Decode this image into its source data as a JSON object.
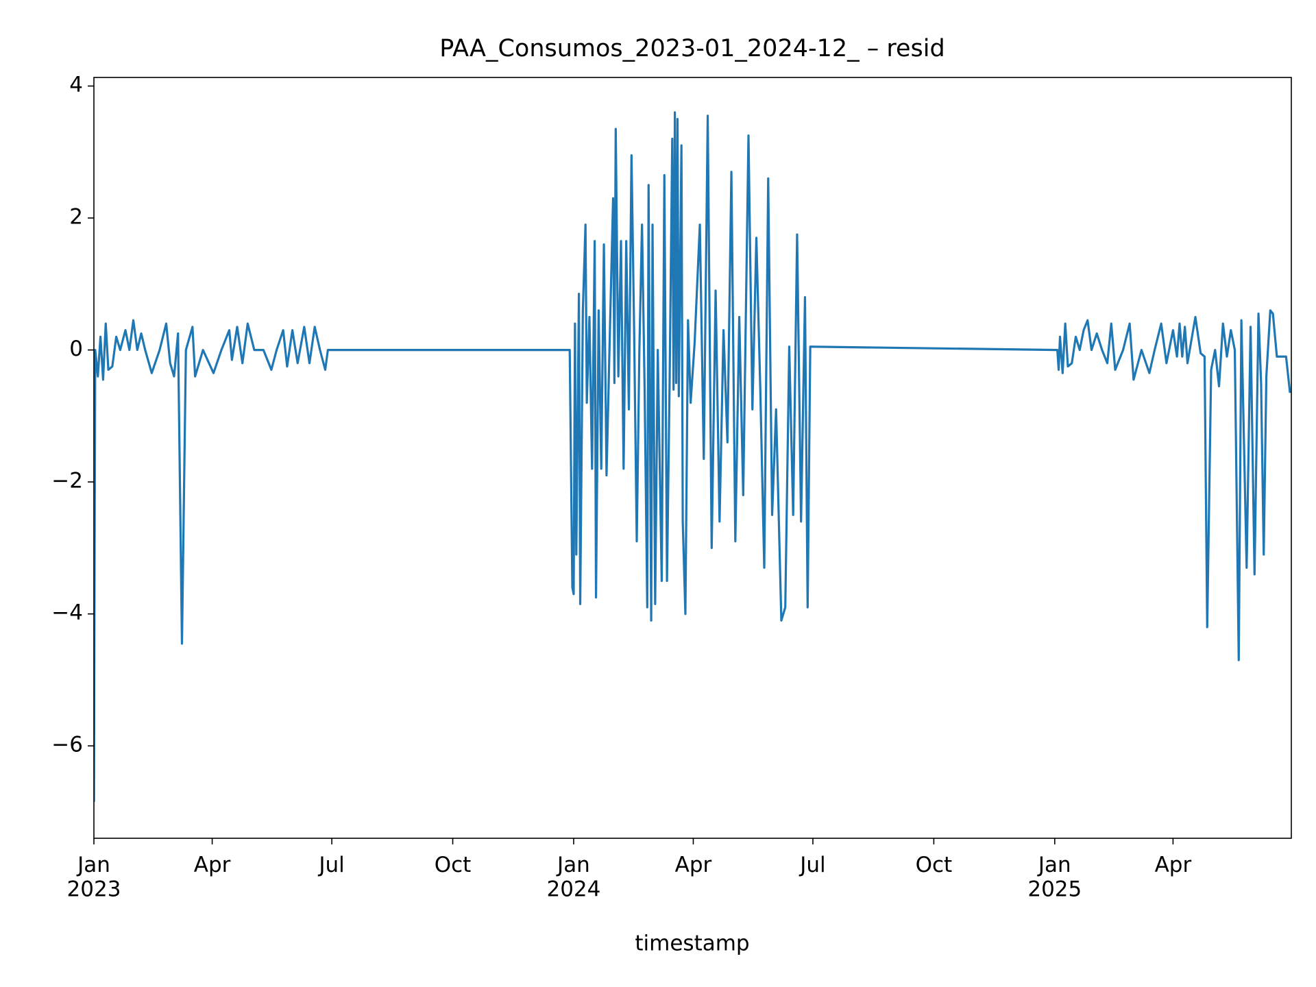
{
  "chart_data": {
    "type": "line",
    "title": "PAA_Consumos_2023-01_2024-12_ – resid",
    "xlabel": "timestamp",
    "color": "#1f77b4",
    "xlim": [
      "2023-01-01",
      "2025-06-30"
    ],
    "ylim": [
      -7.4,
      4.13
    ],
    "xticks": [
      {
        "value": "2023-01-01",
        "label": "Jan\n2023"
      },
      {
        "value": "2023-04-01",
        "label": "Apr"
      },
      {
        "value": "2023-07-01",
        "label": "Jul"
      },
      {
        "value": "2023-10-01",
        "label": "Oct"
      },
      {
        "value": "2024-01-01",
        "label": "Jan\n2024"
      },
      {
        "value": "2024-04-01",
        "label": "Apr"
      },
      {
        "value": "2024-07-01",
        "label": "Jul"
      },
      {
        "value": "2024-10-01",
        "label": "Oct"
      },
      {
        "value": "2025-01-01",
        "label": "Jan\n2025"
      },
      {
        "value": "2025-04-01",
        "label": "Apr"
      }
    ],
    "yticks": [
      {
        "value": -6,
        "label": "−6"
      },
      {
        "value": -4,
        "label": "−4"
      },
      {
        "value": -2,
        "label": "−2"
      },
      0,
      2,
      4
    ],
    "x": [
      "2023-01-01",
      "2023-01-02",
      "2023-01-04",
      "2023-01-06",
      "2023-01-08",
      "2023-01-10",
      "2023-01-12",
      "2023-01-15",
      "2023-01-18",
      "2023-01-21",
      "2023-01-25",
      "2023-01-28",
      "2023-01-31",
      "2023-02-03",
      "2023-02-06",
      "2023-02-09",
      "2023-02-14",
      "2023-02-20",
      "2023-02-25",
      "2023-02-28",
      "2023-03-03",
      "2023-03-06",
      "2023-03-09",
      "2023-03-12",
      "2023-03-17",
      "2023-03-19",
      "2023-03-25",
      "2023-04-02",
      "2023-04-08",
      "2023-04-14",
      "2023-04-16",
      "2023-04-20",
      "2023-04-24",
      "2023-04-28",
      "2023-05-03",
      "2023-05-10",
      "2023-05-16",
      "2023-05-20",
      "2023-05-25",
      "2023-05-28",
      "2023-06-01",
      "2023-06-05",
      "2023-06-10",
      "2023-06-14",
      "2023-06-18",
      "2023-06-22",
      "2023-06-26",
      "2023-06-28",
      "2023-12-29",
      "2023-12-31",
      "2024-01-01",
      "2024-01-02",
      "2024-01-03",
      "2024-01-05",
      "2024-01-06",
      "2024-01-08",
      "2024-01-10",
      "2024-01-11",
      "2024-01-13",
      "2024-01-15",
      "2024-01-17",
      "2024-01-18",
      "2024-01-20",
      "2024-01-22",
      "2024-01-24",
      "2024-01-26",
      "2024-01-28",
      "2024-01-31",
      "2024-02-01",
      "2024-02-02",
      "2024-02-04",
      "2024-02-06",
      "2024-02-08",
      "2024-02-10",
      "2024-02-12",
      "2024-02-14",
      "2024-02-16",
      "2024-02-18",
      "2024-02-20",
      "2024-02-22",
      "2024-02-24",
      "2024-02-26",
      "2024-02-27",
      "2024-02-29",
      "2024-03-01",
      "2024-03-03",
      "2024-03-05",
      "2024-03-08",
      "2024-03-10",
      "2024-03-12",
      "2024-03-14",
      "2024-03-16",
      "2024-03-17",
      "2024-03-18",
      "2024-03-19",
      "2024-03-20",
      "2024-03-21",
      "2024-03-23",
      "2024-03-24",
      "2024-03-26",
      "2024-03-28",
      "2024-03-30",
      "2024-04-02",
      "2024-04-06",
      "2024-04-09",
      "2024-04-12",
      "2024-04-15",
      "2024-04-18",
      "2024-04-21",
      "2024-04-24",
      "2024-04-27",
      "2024-04-30",
      "2024-05-03",
      "2024-05-06",
      "2024-05-09",
      "2024-05-13",
      "2024-05-16",
      "2024-05-19",
      "2024-05-22",
      "2024-05-25",
      "2024-05-28",
      "2024-05-31",
      "2024-06-03",
      "2024-06-07",
      "2024-06-10",
      "2024-06-13",
      "2024-06-16",
      "2024-06-19",
      "2024-06-22",
      "2024-06-25",
      "2024-06-27",
      "2024-06-29",
      "2025-01-03",
      "2025-01-04",
      "2025-01-05",
      "2025-01-07",
      "2025-01-09",
      "2025-01-11",
      "2025-01-14",
      "2025-01-17",
      "2025-01-20",
      "2025-01-23",
      "2025-01-26",
      "2025-01-29",
      "2025-02-02",
      "2025-02-06",
      "2025-02-10",
      "2025-02-13",
      "2025-02-16",
      "2025-02-22",
      "2025-02-27",
      "2025-03-02",
      "2025-03-08",
      "2025-03-14",
      "2025-03-18",
      "2025-03-23",
      "2025-03-27",
      "2025-04-01",
      "2025-04-04",
      "2025-04-06",
      "2025-04-08",
      "2025-04-10",
      "2025-04-12",
      "2025-04-18",
      "2025-04-22",
      "2025-04-25",
      "2025-04-27",
      "2025-04-30",
      "2025-05-03",
      "2025-05-06",
      "2025-05-09",
      "2025-05-12",
      "2025-05-15",
      "2025-05-18",
      "2025-05-21",
      "2025-05-23",
      "2025-05-27",
      "2025-05-30",
      "2025-06-02",
      "2025-06-05",
      "2025-06-07",
      "2025-06-09",
      "2025-06-11",
      "2025-06-14",
      "2025-06-16",
      "2025-06-19",
      "2025-06-26",
      "2025-06-29"
    ],
    "values": [
      -6.85,
      0.0,
      -0.4,
      0.2,
      -0.45,
      0.4,
      -0.3,
      -0.25,
      0.2,
      0,
      0.3,
      0,
      0.45,
      0,
      0.25,
      0,
      -0.35,
      0,
      0.4,
      -0.2,
      -0.4,
      0.25,
      -4.45,
      0,
      0.35,
      -0.4,
      0,
      -0.35,
      0,
      0.3,
      -0.15,
      0.35,
      -0.2,
      0.4,
      0,
      0,
      -0.3,
      0,
      0.3,
      -0.25,
      0.3,
      -0.2,
      0.35,
      -0.2,
      0.35,
      0,
      -0.3,
      0,
      0.0,
      -3.6,
      -3.7,
      0.4,
      -3.1,
      0.85,
      -3.85,
      0.6,
      1.9,
      -0.8,
      0.5,
      -1.8,
      1.65,
      -3.75,
      0.6,
      -1.8,
      1.6,
      -1.9,
      -0.2,
      2.3,
      -0.5,
      3.35,
      -0.4,
      1.65,
      -1.8,
      1.65,
      -0.9,
      2.95,
      0.3,
      -2.9,
      0,
      1.9,
      -0.6,
      -3.9,
      2.5,
      -4.1,
      1.9,
      -3.85,
      0,
      -3.5,
      2.65,
      -3.5,
      -0.5,
      3.2,
      -0.6,
      3.6,
      -0.5,
      3.5,
      -0.7,
      3.1,
      -2.6,
      -4.0,
      0.45,
      -0.8,
      0.1,
      1.9,
      -1.65,
      3.55,
      -3.0,
      0.9,
      -2.6,
      0.3,
      -1.4,
      2.7,
      -2.9,
      0.5,
      -2.2,
      3.25,
      -0.9,
      1.7,
      -0.6,
      -3.3,
      2.6,
      -2.5,
      -0.9,
      -4.1,
      -3.9,
      0.05,
      -2.5,
      1.75,
      -2.6,
      0.8,
      -3.9,
      0.05,
      0.0,
      -0.3,
      0.2,
      -0.35,
      0.4,
      -0.25,
      -0.2,
      0.2,
      0,
      0.3,
      0.45,
      0,
      0.25,
      0,
      -0.2,
      0.4,
      -0.3,
      0,
      0.4,
      -0.45,
      0,
      -0.35,
      0,
      0.4,
      -0.2,
      0.3,
      -0.1,
      0.4,
      -0.1,
      0.35,
      -0.2,
      0.5,
      -0.05,
      -0.1,
      -4.2,
      -0.3,
      0,
      -0.55,
      0.4,
      -0.1,
      0.3,
      0.0,
      -4.7,
      0.45,
      -3.3,
      0.35,
      -3.4,
      0.55,
      -0.5,
      -3.1,
      -0.4,
      0.6,
      0.55,
      -0.1,
      -0.1,
      -0.65
    ]
  }
}
